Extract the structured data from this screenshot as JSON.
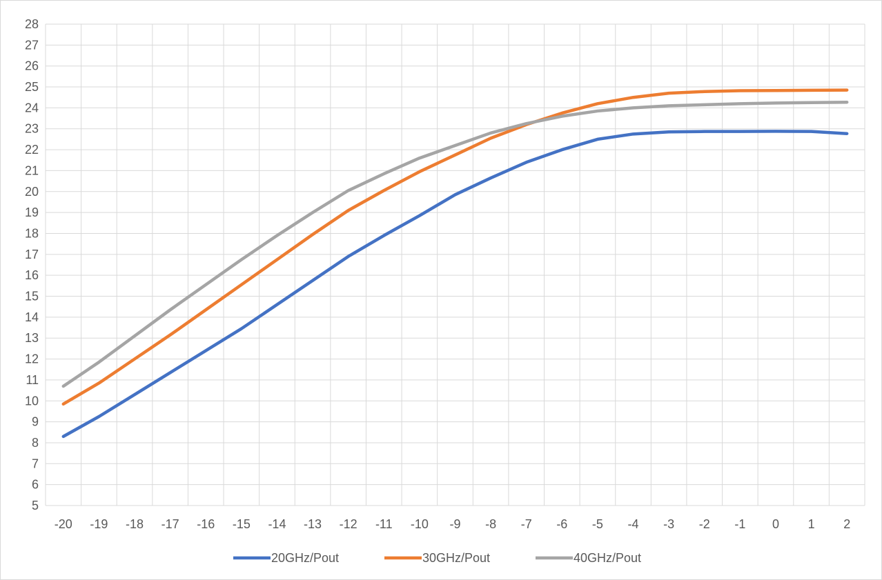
{
  "chart_data": {
    "type": "line",
    "title": "",
    "xlabel": "",
    "ylabel": "",
    "x": [
      -20,
      -19,
      -18,
      -17,
      -16,
      -15,
      -14,
      -13,
      -12,
      -11,
      -10,
      -9,
      -8,
      -7,
      -6,
      -5,
      -4,
      -3,
      -2,
      -1,
      0,
      1,
      2
    ],
    "x_tick_labels": [
      "-20",
      "-19",
      "-18",
      "-17",
      "-16",
      "-15",
      "-14",
      "-13",
      "-12",
      "-11",
      "-10",
      "-9",
      "-8",
      "-7",
      "-6",
      "-5",
      "-4",
      "-3",
      "-2",
      "-1",
      "0",
      "1",
      "2"
    ],
    "ylim": [
      5,
      28
    ],
    "y_ticks": [
      "5",
      "6",
      "7",
      "8",
      "9",
      "10",
      "11",
      "12",
      "13",
      "14",
      "15",
      "16",
      "17",
      "18",
      "19",
      "20",
      "21",
      "22",
      "23",
      "24",
      "25",
      "26",
      "27",
      "28"
    ],
    "grid": true,
    "legend_position": "bottom",
    "series": [
      {
        "name": "20GHz/Pout",
        "color": "#4472C4",
        "values": [
          8.3,
          9.25,
          10.3,
          11.35,
          12.4,
          13.45,
          14.6,
          15.75,
          16.9,
          17.9,
          18.85,
          19.85,
          20.65,
          21.4,
          22.0,
          22.5,
          22.75,
          22.85,
          22.87,
          22.87,
          22.88,
          22.87,
          22.77
        ]
      },
      {
        "name": "30GHz/Pout",
        "color": "#ED7D31",
        "values": [
          9.85,
          10.85,
          12.0,
          13.15,
          14.35,
          15.55,
          16.75,
          17.95,
          19.1,
          20.05,
          20.95,
          21.75,
          22.55,
          23.2,
          23.75,
          24.2,
          24.5,
          24.7,
          24.78,
          24.82,
          24.83,
          24.84,
          24.85
        ]
      },
      {
        "name": "40GHz/Pout",
        "color": "#A5A5A5",
        "values": [
          10.7,
          11.85,
          13.1,
          14.35,
          15.55,
          16.75,
          17.9,
          19.0,
          20.05,
          20.85,
          21.6,
          22.2,
          22.8,
          23.25,
          23.6,
          23.85,
          24.0,
          24.1,
          24.15,
          24.2,
          24.23,
          24.25,
          24.27
        ]
      }
    ]
  }
}
